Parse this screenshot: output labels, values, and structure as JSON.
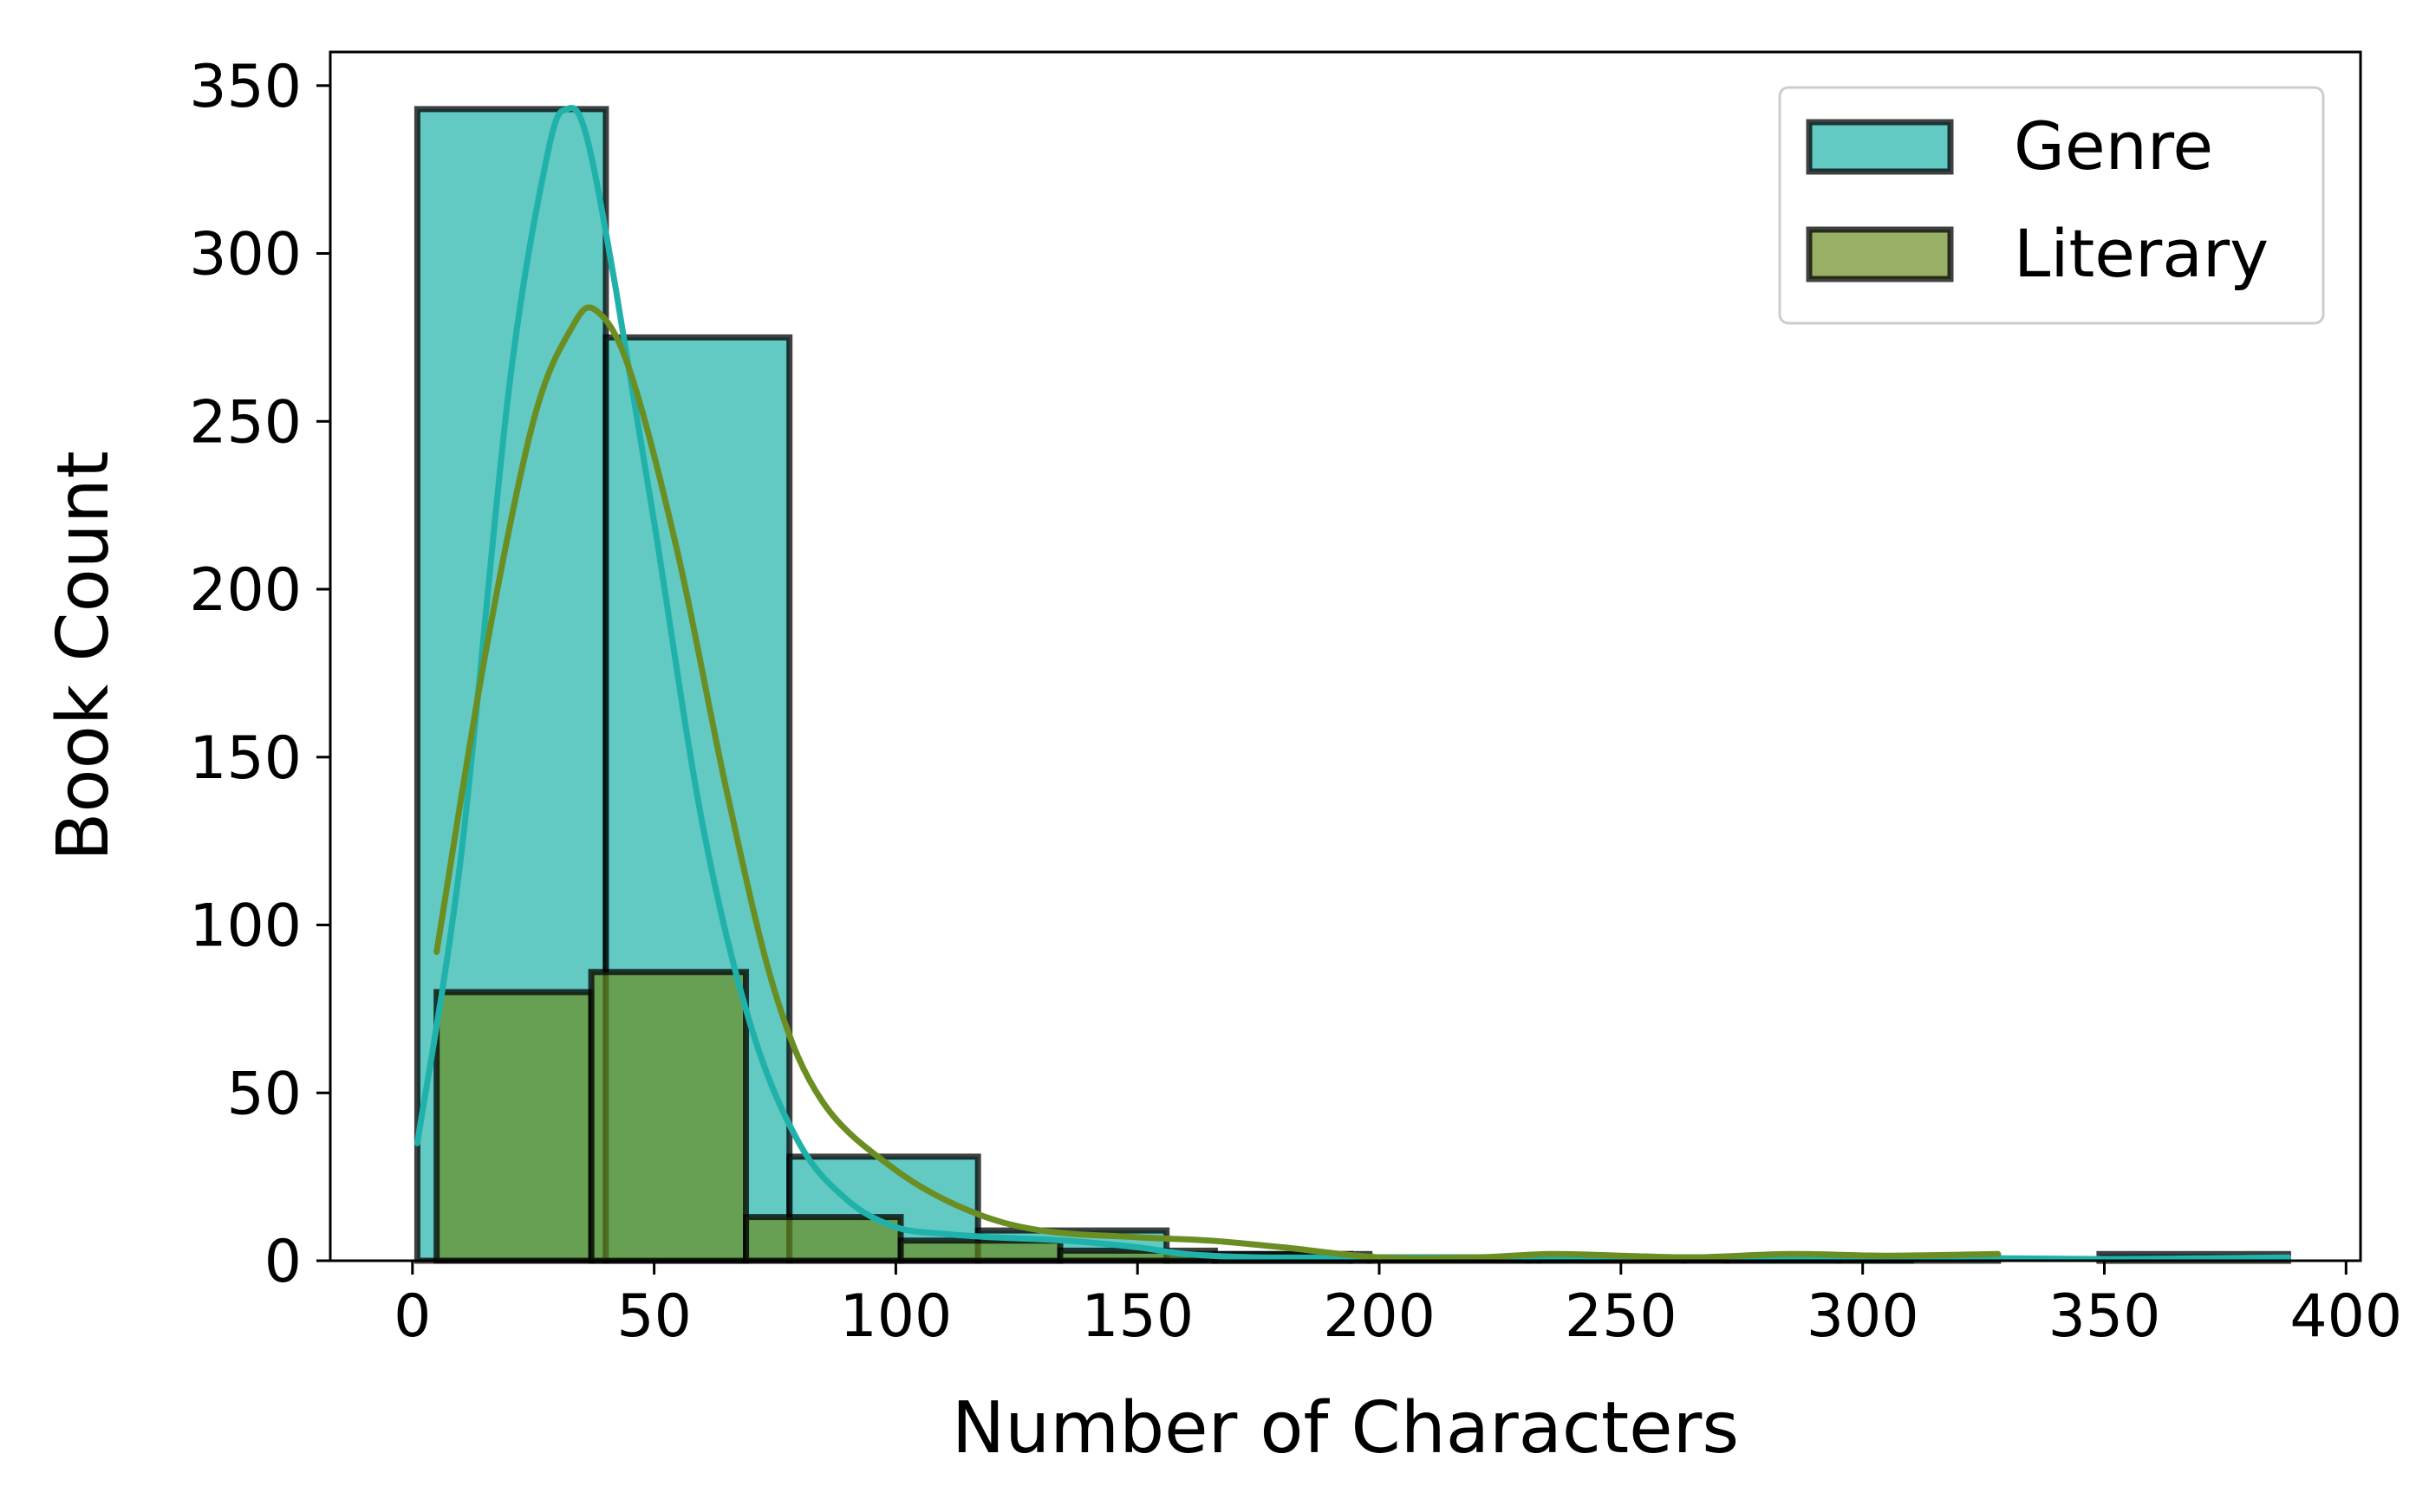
{
  "chart_data": {
    "type": "bar",
    "xlabel": "Number of Characters",
    "ylabel": "Book Count",
    "xlim": [
      -17,
      403
    ],
    "ylim": [
      0,
      360
    ],
    "xticks": [
      0,
      50,
      100,
      150,
      200,
      250,
      300,
      350,
      400
    ],
    "yticks": [
      0,
      50,
      100,
      150,
      200,
      250,
      300,
      350
    ],
    "grid": false,
    "legend_position": "top-right",
    "series": [
      {
        "name": "Genre",
        "color": "#20b2aa",
        "bins": [
          {
            "x0": 1,
            "x1": 40,
            "count": 343
          },
          {
            "x0": 40,
            "x1": 78,
            "count": 275
          },
          {
            "x0": 78,
            "x1": 117,
            "count": 31
          },
          {
            "x0": 117,
            "x1": 156,
            "count": 9
          },
          {
            "x0": 156,
            "x1": 194,
            "count": 2
          },
          {
            "x0": 194,
            "x1": 233,
            "count": 1
          },
          {
            "x0": 233,
            "x1": 272,
            "count": 1
          },
          {
            "x0": 272,
            "x1": 310,
            "count": 1
          },
          {
            "x0": 310,
            "x1": 349,
            "count": 0
          },
          {
            "x0": 349,
            "x1": 388,
            "count": 2
          }
        ],
        "kde": [
          [
            1,
            35
          ],
          [
            10,
            120
          ],
          [
            20,
            260
          ],
          [
            28,
            330
          ],
          [
            32,
            343
          ],
          [
            36,
            335
          ],
          [
            42,
            290
          ],
          [
            50,
            220
          ],
          [
            60,
            130
          ],
          [
            70,
            70
          ],
          [
            80,
            35
          ],
          [
            90,
            18
          ],
          [
            100,
            10
          ],
          [
            110,
            8
          ],
          [
            120,
            7
          ],
          [
            135,
            6
          ],
          [
            150,
            4
          ],
          [
            160,
            2
          ],
          [
            175,
            1
          ],
          [
            200,
            1
          ],
          [
            250,
            1
          ],
          [
            300,
            1
          ],
          [
            350,
            0.5
          ],
          [
            388,
            1
          ]
        ]
      },
      {
        "name": "Literary",
        "color": "#6b8e23",
        "bins": [
          {
            "x0": 5,
            "x1": 37,
            "count": 80
          },
          {
            "x0": 37,
            "x1": 69,
            "count": 86
          },
          {
            "x0": 69,
            "x1": 101,
            "count": 13
          },
          {
            "x0": 101,
            "x1": 134,
            "count": 6
          },
          {
            "x0": 134,
            "x1": 166,
            "count": 3
          },
          {
            "x0": 166,
            "x1": 198,
            "count": 2
          },
          {
            "x0": 198,
            "x1": 231,
            "count": 1
          },
          {
            "x0": 231,
            "x1": 263,
            "count": 1
          },
          {
            "x0": 263,
            "x1": 295,
            "count": 1
          },
          {
            "x0": 295,
            "x1": 328,
            "count": 1
          }
        ],
        "kde": [
          [
            5,
            92
          ],
          [
            15,
            180
          ],
          [
            25,
            250
          ],
          [
            33,
            278
          ],
          [
            38,
            283
          ],
          [
            45,
            265
          ],
          [
            55,
            210
          ],
          [
            65,
            140
          ],
          [
            75,
            80
          ],
          [
            85,
            47
          ],
          [
            100,
            27
          ],
          [
            115,
            15
          ],
          [
            130,
            9
          ],
          [
            150,
            7
          ],
          [
            165,
            6
          ],
          [
            180,
            4
          ],
          [
            200,
            1
          ],
          [
            220,
            1
          ],
          [
            235,
            2
          ],
          [
            250,
            1.5
          ],
          [
            265,
            1
          ],
          [
            285,
            2
          ],
          [
            305,
            1.5
          ],
          [
            328,
            2
          ]
        ]
      }
    ]
  }
}
